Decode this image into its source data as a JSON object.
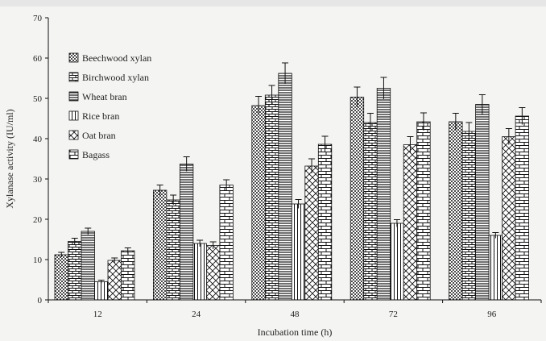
{
  "chart_data": {
    "type": "bar",
    "title": "",
    "xlabel": "Incubation time (h)",
    "ylabel": "Xylanase activity (IU/ml)",
    "ylim": [
      0,
      70
    ],
    "yticks": [
      0,
      10,
      20,
      30,
      40,
      50,
      60,
      70
    ],
    "categories": [
      "12",
      "24",
      "48",
      "72",
      "96"
    ],
    "legend_position": "top-left",
    "grid": false,
    "series": [
      {
        "name": "Beechwood xylan",
        "pattern": "dots",
        "values": [
          11.2,
          27.2,
          48.2,
          50.3,
          44.2
        ],
        "errors": [
          0.6,
          1.3,
          2.3,
          2.5,
          2.1
        ]
      },
      {
        "name": "Birchwood xylan",
        "pattern": "brick",
        "values": [
          14.5,
          24.8,
          50.8,
          44.0,
          41.8
        ],
        "errors": [
          0.8,
          1.2,
          2.4,
          2.3,
          2.2
        ]
      },
      {
        "name": "Wheat bran",
        "pattern": "hlines",
        "values": [
          17.0,
          33.7,
          56.2,
          52.5,
          48.5
        ],
        "errors": [
          0.8,
          1.8,
          2.6,
          2.7,
          2.4
        ]
      },
      {
        "name": "Rice bran",
        "pattern": "vlines",
        "values": [
          4.5,
          14.0,
          23.8,
          19.0,
          16.0
        ],
        "errors": [
          0.4,
          0.8,
          1.1,
          0.9,
          0.7
        ]
      },
      {
        "name": "Oat bran",
        "pattern": "cross",
        "values": [
          9.8,
          13.5,
          33.2,
          38.5,
          40.5
        ],
        "errors": [
          0.6,
          0.9,
          1.8,
          2.0,
          2.0
        ]
      },
      {
        "name": "Bagass",
        "pattern": "brickh",
        "values": [
          12.2,
          28.5,
          38.6,
          44.2,
          45.6
        ],
        "errors": [
          0.7,
          1.3,
          2.0,
          2.2,
          2.1
        ]
      }
    ]
  }
}
